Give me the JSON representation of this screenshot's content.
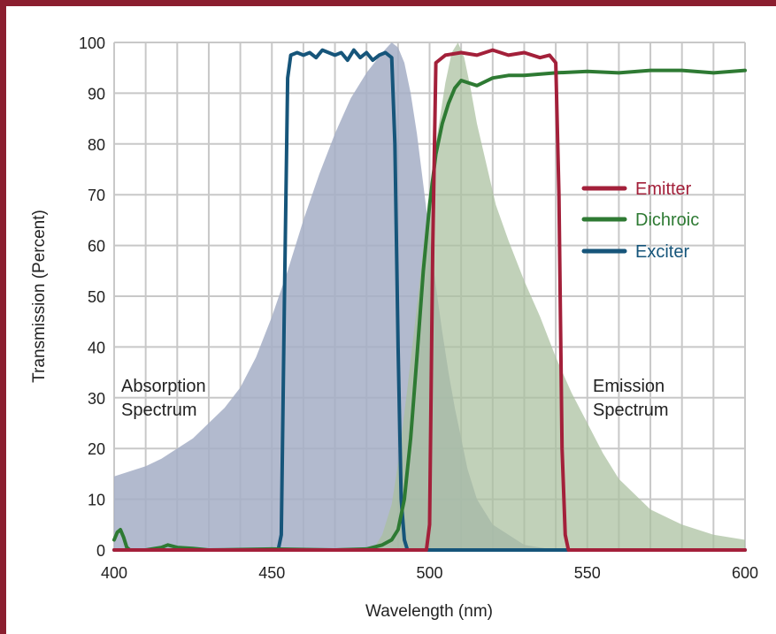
{
  "colors": {
    "frame": "#8b1e2f",
    "grid": "#c8c8c8",
    "absorption_fill": "#a4aec6",
    "emission_fill": "#a9bf9e",
    "emitter": "#a3203a",
    "dichroic": "#2e7a33",
    "exciter": "#16557a"
  },
  "chart_data": {
    "type": "line",
    "xlabel": "Wavelength (nm)",
    "ylabel": "Transmission (Percent)",
    "xlim": [
      400,
      600
    ],
    "ylim": [
      0,
      100
    ],
    "x_ticks": [
      400,
      450,
      500,
      550,
      600
    ],
    "y_ticks": [
      0,
      10,
      20,
      30,
      40,
      50,
      60,
      70,
      80,
      90,
      100
    ],
    "grid": true,
    "legend_position": "right",
    "legend": [
      "Emitter",
      "Dichroic",
      "Exciter"
    ],
    "annotations": [
      {
        "text": [
          "Absorption",
          "Spectrum"
        ]
      },
      {
        "text": [
          "Emission",
          "Spectrum"
        ]
      }
    ],
    "areas": [
      {
        "id": "absorption",
        "x": [
          400,
          405,
          410,
          415,
          420,
          425,
          430,
          435,
          440,
          445,
          450,
          455,
          460,
          465,
          470,
          475,
          480,
          485,
          488,
          490,
          492,
          494,
          496,
          498,
          500,
          502,
          504,
          506,
          508,
          510,
          512,
          515,
          520,
          530,
          540
        ],
        "y": [
          14.5,
          15.5,
          16.5,
          18,
          20,
          22,
          25,
          28,
          32,
          38,
          46,
          55,
          65,
          74,
          82,
          89,
          94,
          98,
          100,
          99,
          96,
          90,
          82,
          72,
          62,
          52,
          43,
          35,
          28,
          22,
          16,
          10,
          5,
          1,
          0
        ]
      },
      {
        "id": "emission",
        "x": [
          482,
          485,
          488,
          490,
          493,
          496,
          499,
          502,
          505,
          507,
          509,
          511,
          513,
          515,
          518,
          521,
          525,
          530,
          535,
          540,
          545,
          550,
          555,
          560,
          570,
          580,
          590,
          600
        ],
        "y": [
          0,
          3,
          9,
          17,
          32,
          48,
          65,
          80,
          92,
          98,
          100,
          97,
          91,
          84,
          76,
          68,
          61,
          53,
          46,
          38,
          31,
          25,
          19,
          14,
          8,
          5,
          3,
          2
        ]
      }
    ],
    "series": [
      {
        "name": "Exciter",
        "x": [
          400,
          452,
          453,
          454,
          455,
          456,
          458,
          460,
          462,
          464,
          466,
          468,
          470,
          472,
          474,
          476,
          478,
          480,
          482,
          484,
          486,
          488,
          489,
          490,
          491,
          492,
          493,
          600
        ],
        "y": [
          0,
          0,
          3,
          50,
          93,
          97.5,
          98,
          97.5,
          98,
          97,
          98.5,
          98,
          97.5,
          98,
          96.5,
          98.5,
          97,
          98,
          96.5,
          97.5,
          98,
          97,
          80,
          40,
          10,
          2,
          0,
          0
        ]
      },
      {
        "name": "Dichroic",
        "x": [
          400,
          401,
          402,
          403,
          404,
          405,
          410,
          415,
          417,
          420,
          425,
          430,
          450,
          470,
          480,
          485,
          488,
          490,
          492,
          494,
          496,
          498,
          500,
          502,
          504,
          506,
          508,
          510,
          515,
          520,
          525,
          530,
          540,
          550,
          560,
          570,
          580,
          590,
          600
        ],
        "y": [
          2,
          3.5,
          4,
          2.5,
          0.5,
          0,
          0,
          0.5,
          1,
          0.5,
          0.3,
          0,
          0.2,
          0,
          0.2,
          1,
          2,
          4,
          10,
          22,
          38,
          55,
          68,
          78,
          84,
          88,
          91,
          92.5,
          91.5,
          93,
          93.5,
          93.5,
          94,
          94.3,
          94,
          94.5,
          94.5,
          94,
          94.5
        ]
      },
      {
        "name": "Emitter",
        "x": [
          400,
          499,
          500,
          501,
          502,
          505,
          510,
          515,
          520,
          525,
          530,
          535,
          538,
          540,
          541,
          542,
          543,
          544,
          600
        ],
        "y": [
          0,
          0,
          5,
          60,
          96,
          97.5,
          98,
          97.5,
          98.5,
          97.5,
          98,
          97,
          97.5,
          96,
          70,
          20,
          3,
          0,
          0
        ]
      }
    ]
  }
}
